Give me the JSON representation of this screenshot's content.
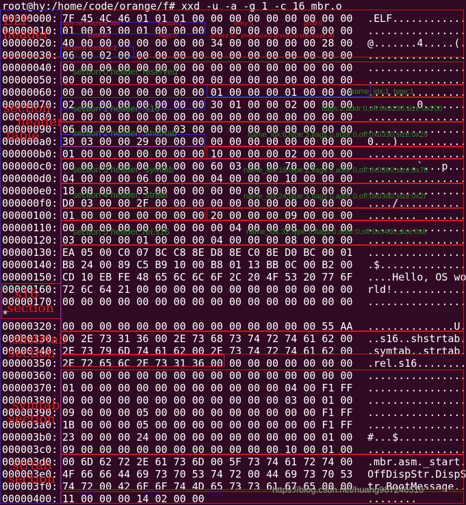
{
  "command": "root@hy:/home/code/orange/f# xxd -u -a -g 1 -c 16 mbr.o",
  "rows": [
    {
      "addr": "00000000:",
      "hex": "7F 45 4C 46 01 01 01 00 00 00 00 00 00 00 00 00",
      "ascii": ".ELF............"
    },
    {
      "addr": "00000010:",
      "hex": "01 00 03 00 01 00 00 00 00 00 00 00 00 00 00 00",
      "ascii": "................"
    },
    {
      "addr": "00000020:",
      "hex": "40 00 00 00 00 00 00 00 34 00 00 00 00 00 28 00",
      "ascii": "@.......4.....(."
    },
    {
      "addr": "00000030:",
      "hex": "06 00 02 00 00 00 00 00 00 00 00 00 00 00 00 00",
      "ascii": "................"
    },
    {
      "addr": "00000040:",
      "hex": "00 00 00 00 00 00 00 00 00 00 00 00 00 00 00 00",
      "ascii": "................"
    },
    {
      "addr": "00000050:",
      "hex": "00 00 00 00 00 00 00 00 00 00 00 00 00 00 00 00",
      "ascii": "................"
    },
    {
      "addr": "00000060:",
      "hex": "00 00 00 00 00 00 00 00 01 00 00 00 01 00 00 00",
      "ascii": "................"
    },
    {
      "addr": "00000070:",
      "hex": "02 00 00 00 00 00 00 00 30 01 00 00 02 00 00 00",
      "ascii": "........0......."
    },
    {
      "addr": "00000080:",
      "hex": "00 00 00 00 00 00 00 00 00 00 00 00 00 00 00 00",
      "ascii": "................"
    },
    {
      "addr": "00000090:",
      "hex": "06 00 00 00 00 00 03 00 00 00 00 00 00 00 00 00",
      "ascii": "................"
    },
    {
      "addr": "000000a0:",
      "hex": "30 03 00 00 29 00 00 00 00 00 00 00 00 00 00 00",
      "ascii": "0...)..........."
    },
    {
      "addr": "000000b0:",
      "hex": "01 00 00 00 00 00 00 00 10 00 00 00 02 00 00 00",
      "ascii": "................"
    },
    {
      "addr": "000000c0:",
      "hex": "00 00 00 00 00 00 00 00 60 03 00 00 70 00 00 00",
      "ascii": "........`...p..."
    },
    {
      "addr": "000000d0:",
      "hex": "04 00 00 00 06 00 00 00 04 00 00 00 10 00 00 00",
      "ascii": "................"
    },
    {
      "addr": "000000e0:",
      "hex": "18 00 00 00 03 00 00 00 00 00 00 00 00 00 00 00",
      "ascii": "................"
    },
    {
      "addr": "000000f0:",
      "hex": "D0 03 00 00 2F 00 00 00 00 00 00 00 00 00 00 00",
      "ascii": "..../.........."
    },
    {
      "addr": "00000100:",
      "hex": "01 00 00 00 00 00 00 00 20 00 00 00 09 00 00 00",
      "ascii": "........ ......."
    },
    {
      "addr": "00000110:",
      "hex": "00 00 00 00 00 00 00 00 00 04 00 00 08 00 00 00",
      "ascii": "................"
    },
    {
      "addr": "00000120:",
      "hex": "03 00 00 00 01 00 00 00 04 00 00 00 08 00 00 00",
      "ascii": "................"
    },
    {
      "addr": "00000130:",
      "hex": "EA 05 00 C0 07 8C C8 8E D8 8E C0 8E D0 BC 00 01",
      "ascii": "................"
    },
    {
      "addr": "00000140:",
      "hex": "B8 24 00 89 C5 B9 10 00 B8 01 13 BB 0C 00 B2 00",
      "ascii": ".$.............."
    },
    {
      "addr": "00000150:",
      "hex": "CD 10 EB FE 48 65 6C 6C 6F 2C 20 4F 53 20 77 6F",
      "ascii": "....Hello, OS wo"
    },
    {
      "addr": "00000160:",
      "hex": "72 6C 64 21 00 00 00 00 00 00 00 00 00 00 00 00",
      "ascii": "rld!............"
    },
    {
      "addr": "00000170:",
      "hex": "00 00 00 00 00 00 00 00 00 00 00 00 00 00 00 00",
      "ascii": "................"
    },
    {
      "addr": "*",
      "hex": "",
      "ascii": ""
    },
    {
      "addr": "00000320:",
      "hex": "00 00 00 00 00 00 00 00 00 00 00 00 00 00 55 AA",
      "ascii": "..............U."
    },
    {
      "addr": "00000330:",
      "hex": "00 2E 73 31 36 00 2E 73 68 73 74 72 74 61 62 00",
      "ascii": "..s16..shstrtab."
    },
    {
      "addr": "00000340:",
      "hex": "2E 73 79 6D 74 61 62 00 2E 73 74 72 74 61 62 00",
      "ascii": ".symtab..strtab."
    },
    {
      "addr": "00000350:",
      "hex": "2E 72 65 6C 2E 73 31 36 00 00 00 00 00 00 00 00",
      "ascii": ".rel.s16........"
    },
    {
      "addr": "00000360:",
      "hex": "00 00 00 00 00 00 00 00 00 00 00 00 00 00 00 00",
      "ascii": "................"
    },
    {
      "addr": "00000370:",
      "hex": "01 00 00 00 00 00 00 00 00 00 00 00 04 00 F1 FF",
      "ascii": "................"
    },
    {
      "addr": "00000380:",
      "hex": "00 00 00 00 00 00 00 00 00 00 00 00 03 00 01 00",
      "ascii": "................"
    },
    {
      "addr": "00000390:",
      "hex": "09 00 00 00 05 00 00 00 00 00 00 00 00 00 F1 FF",
      "ascii": "................"
    },
    {
      "addr": "000003a0:",
      "hex": "1B 00 00 00 05 00 00 00 00 00 00 00 00 00 F1 FF",
      "ascii": "................"
    },
    {
      "addr": "000003b0:",
      "hex": "23 00 00 00 24 00 00 00 00 00 00 00 00 00 01 00",
      "ascii": "#...$..........."
    },
    {
      "addr": "000003c0:",
      "hex": "09 00 00 00 00 00 00 00 00 00 00 00 10 00 01 00",
      "ascii": "................"
    },
    {
      "addr": "000003d0:",
      "hex": "00 6D 62 72 2E 61 73 6D 00 5F 73 74 61 72 74 00",
      "ascii": ".mbr.asm._start."
    },
    {
      "addr": "000003e0:",
      "hex": "4F 66 66 44 69 73 70 53 74 72 00 44 69 73 70 53",
      "ascii": "OffDispStr.DispS"
    },
    {
      "addr": "000003f0:",
      "hex": "74 72 00 42 6F 6F 74 4D 65 73 73 61 67 65 00 00",
      "ascii": "tr.BootMessage.."
    },
    {
      "addr": "00000400:",
      "hex": "11 00 00 00 14 02 00 00",
      "ascii": "........"
    }
  ],
  "labels": {
    "elf_header": [
      "ELF",
      "header"
    ],
    "section_header_table": [
      "section",
      "header",
      "table"
    ],
    "s16_section": [
      ".s16",
      "section"
    ],
    "shstrtab_section": [
      ".shstrtab",
      "section"
    ],
    "symtab_section": [
      ".symtab",
      "section"
    ],
    "strtab_section": [
      ".strtab",
      "section"
    ],
    "elf_fields": {
      "type": "type:rel machine:386",
      "version": "version:1",
      "entry": "entry:0",
      "phoff": "phoff:0",
      "shoff": "shoff:40",
      "flags": "flags:0",
      "ehsize": "ehsize:52",
      "phentsize": "phentsize:0 phnum:0 shentsize:40",
      "shnum": "shnum:6  shstrndx:2"
    },
    "section_headers": [
      {
        "title": "section 0 header, reserved",
        "desc": ""
      },
      {
        "title": "section 1 header, .s16",
        "desc": "name_idx:1, type:1"
      },
      {
        "title": "",
        "desc": "flags:2,addr:0,off:0x0130,size:0x200"
      },
      {
        "title": "section 2 header, .shstrtab",
        "desc": "name_idx:6,type:3,flags:0,addr:0,off:0x0330,size:0x29"
      },
      {
        "title": "section 3 header, .symtab",
        "desc": "name_idx:16,type:2,flags:0,addr:0,off:0x0360,size:0x70"
      },
      {
        "title": "section 4 header, .strtab",
        "desc": "name_idx:24,type:3,flags:0,addr:0,off:0x03d0,size:0x2f"
      },
      {
        "title": "section 5 header,.rel.s16",
        "desc": "name_idx:32,type:9,flags:0,addr:0,off:0x0400,size:0x8"
      }
    ]
  },
  "watermark": "https://blog.csdn.net/huang987246510"
}
